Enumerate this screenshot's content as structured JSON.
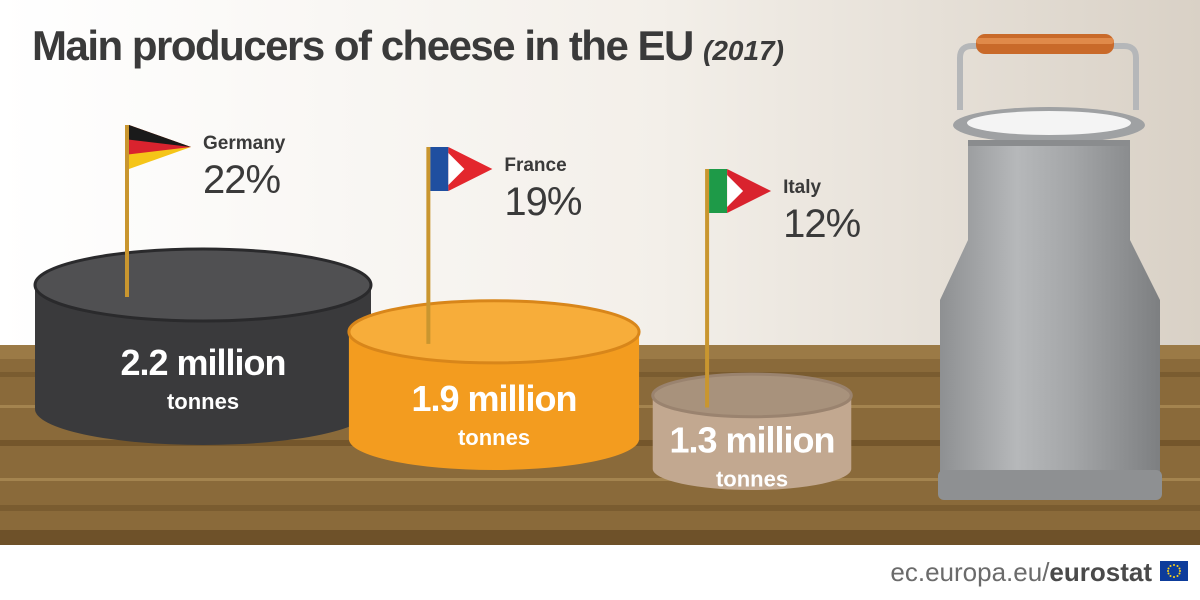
{
  "title": "Main producers of cheese in the EU",
  "year": "(2017)",
  "footer": {
    "site": "ec.europa.eu/",
    "brand": "eurostat"
  },
  "colors": {
    "germany_wheel": "#3a3a3c",
    "france_wheel": "#f39c1f",
    "italy_wheel": "#c2a890",
    "wood": "#8a6a3a",
    "milk_can": "#a7a9ab"
  },
  "chart_data": {
    "type": "bar",
    "unit": "million tonnes",
    "categories": [
      "Germany",
      "France",
      "Italy"
    ],
    "values": [
      2.2,
      1.9,
      1.3
    ],
    "shares": [
      "22%",
      "19%",
      "12%"
    ],
    "value_labels": [
      "2.2 million",
      "1.9 million",
      "1.3 million"
    ],
    "unit_label": "tonnes",
    "flags": [
      "germany-flag",
      "france-flag",
      "italy-flag"
    ]
  }
}
